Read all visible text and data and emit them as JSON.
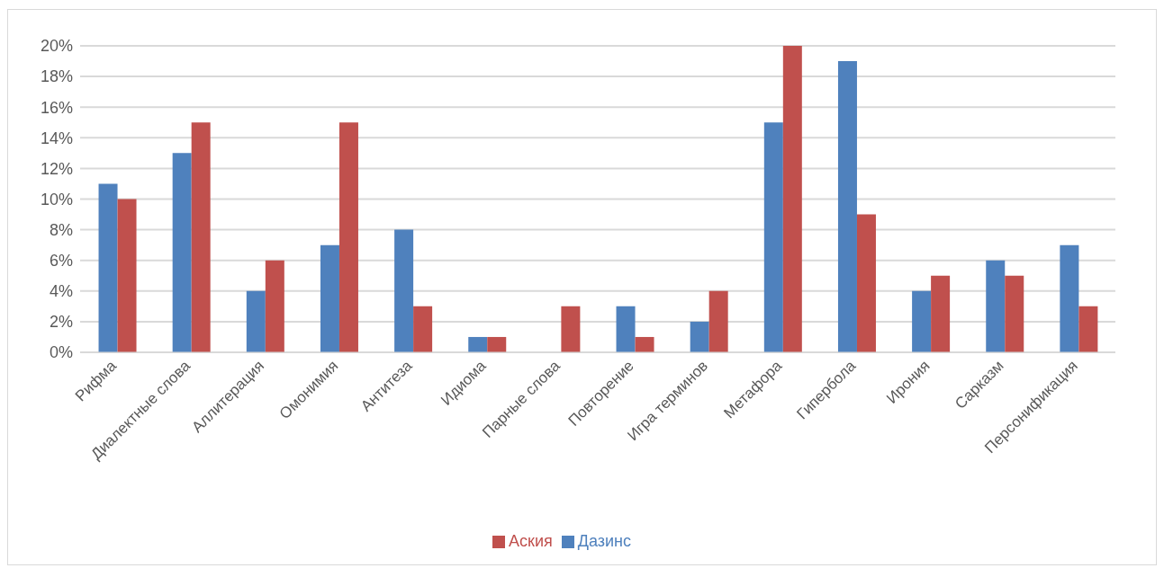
{
  "chart_data": {
    "type": "bar",
    "categories": [
      "Рифма",
      "Диалектные слова",
      "Аллитерация",
      "Омонимия",
      "Антитеза",
      "Идиома",
      "Парные слова",
      "Повторение",
      "Игра терминов",
      "Метафора",
      "Гипербола",
      "Ирония",
      "Сарказм",
      "Персонификация"
    ],
    "series": [
      {
        "name": "Дазинс",
        "color": "#4f81bd",
        "values": [
          11,
          13,
          4,
          7,
          8,
          1,
          0,
          3,
          2,
          15,
          19,
          4,
          6,
          7
        ]
      },
      {
        "name": "Аския",
        "color": "#c0504d",
        "values": [
          10,
          15,
          6,
          15,
          3,
          1,
          3,
          1,
          4,
          20,
          9,
          5,
          5,
          3
        ]
      }
    ],
    "ylim": [
      0,
      20
    ],
    "yticks": [
      {
        "value": 0,
        "label": "0%"
      },
      {
        "value": 2,
        "label": "2%"
      },
      {
        "value": 4,
        "label": "4%"
      },
      {
        "value": 6,
        "label": "6%"
      },
      {
        "value": 8,
        "label": "8%"
      },
      {
        "value": 10,
        "label": "10%"
      },
      {
        "value": 12,
        "label": "12%"
      },
      {
        "value": 14,
        "label": "14%"
      },
      {
        "value": 16,
        "label": "16%"
      },
      {
        "value": 18,
        "label": "18%"
      },
      {
        "value": 20,
        "label": "20%"
      }
    ],
    "grid": "y",
    "legend": "bottom"
  }
}
